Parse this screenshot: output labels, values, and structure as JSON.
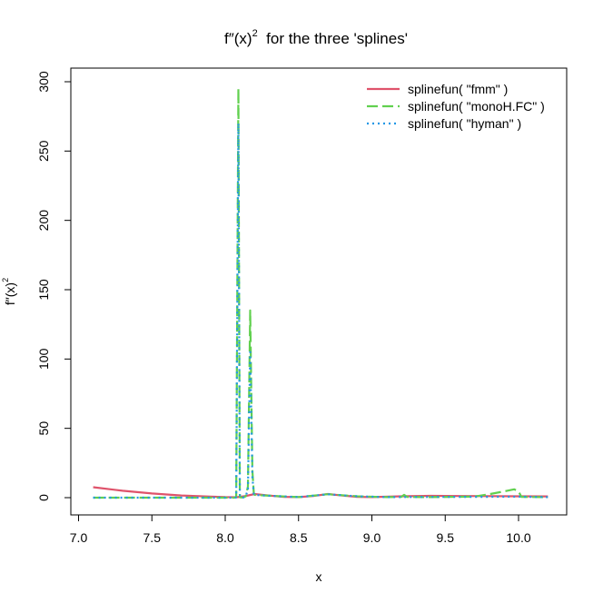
{
  "chart_data": {
    "type": "line",
    "title": {
      "base": "f″(x)",
      "exponent": "2",
      "rest": "  for the three 'splines'"
    },
    "xlabel": "x",
    "ylabel": {
      "base": "f″(x)",
      "exponent": "2"
    },
    "xlim": [
      7.0,
      10.3
    ],
    "ylim": [
      -12,
      310
    ],
    "x_ticks": [
      {
        "value": 7.0,
        "label": "7.0"
      },
      {
        "value": 7.5,
        "label": "7.5"
      },
      {
        "value": 8.0,
        "label": "8.0"
      },
      {
        "value": 8.5,
        "label": "8.5"
      },
      {
        "value": 9.0,
        "label": "9.0"
      },
      {
        "value": 9.5,
        "label": "9.5"
      },
      {
        "value": 10.0,
        "label": "10.0"
      }
    ],
    "y_ticks": [
      {
        "value": 0,
        "label": "0"
      },
      {
        "value": 50,
        "label": "50"
      },
      {
        "value": 100,
        "label": "100"
      },
      {
        "value": 150,
        "label": "150"
      },
      {
        "value": 200,
        "label": "200"
      },
      {
        "value": 250,
        "label": "250"
      },
      {
        "value": 300,
        "label": "300"
      }
    ],
    "grid": false,
    "legend": {
      "position": "top-right",
      "box": false
    },
    "series": [
      {
        "name": "splinefun( \"fmm\" )",
        "color": "#DF536B",
        "dash": "solid",
        "x": [
          7.1,
          7.3,
          7.5,
          7.7,
          7.9,
          8.0,
          8.08,
          8.14,
          8.2,
          8.3,
          8.4,
          8.5,
          8.6,
          8.7,
          8.8,
          8.9,
          9.0,
          9.2,
          9.4,
          9.6,
          9.8,
          10.0,
          10.2
        ],
        "y": [
          7.5,
          5.0,
          3.0,
          1.6,
          0.8,
          0.4,
          0.3,
          1.2,
          2.6,
          1.5,
          0.6,
          0.4,
          1.2,
          2.6,
          1.5,
          0.6,
          0.4,
          1.0,
          1.3,
          1.2,
          1.1,
          1.0,
          0.9
        ]
      },
      {
        "name": "splinefun( \"monoH.FC\" )",
        "color": "#61D04F",
        "dash": "dashed",
        "x": [
          7.1,
          7.9,
          8.06,
          8.075,
          8.09,
          8.1,
          8.11,
          8.125,
          8.14,
          8.155,
          8.17,
          8.185,
          8.195,
          8.2,
          8.3,
          8.5,
          8.7,
          8.9,
          9.1,
          9.2,
          9.22,
          9.24,
          9.4,
          9.7,
          9.8,
          9.9,
          9.97,
          10.0,
          10.02,
          10.2
        ],
        "y": [
          0,
          0,
          0,
          0.2,
          295,
          0.3,
          0.1,
          0.2,
          1,
          8,
          135,
          20,
          3,
          2,
          1.4,
          0.4,
          2.5,
          1.0,
          0.4,
          0.5,
          2.0,
          0.5,
          0.4,
          0.8,
          2.5,
          4.5,
          6,
          4.5,
          0.5,
          0.3
        ]
      },
      {
        "name": "splinefun( \"hyman\" )",
        "color": "#2297E6",
        "dash": "dotted",
        "x": [
          7.1,
          7.9,
          8.06,
          8.075,
          8.09,
          8.1,
          8.11,
          8.125,
          8.14,
          8.155,
          8.17,
          8.185,
          8.195,
          8.2,
          8.3,
          8.5,
          8.7,
          8.9,
          9.1,
          9.4,
          9.8,
          10.0,
          10.2
        ],
        "y": [
          0,
          0,
          0,
          0.2,
          270,
          0.3,
          0.1,
          0.2,
          1,
          6,
          105,
          15,
          2.5,
          2,
          1.4,
          0.4,
          2.4,
          1.0,
          0.4,
          0.5,
          0.6,
          0.7,
          0.4
        ]
      }
    ]
  }
}
